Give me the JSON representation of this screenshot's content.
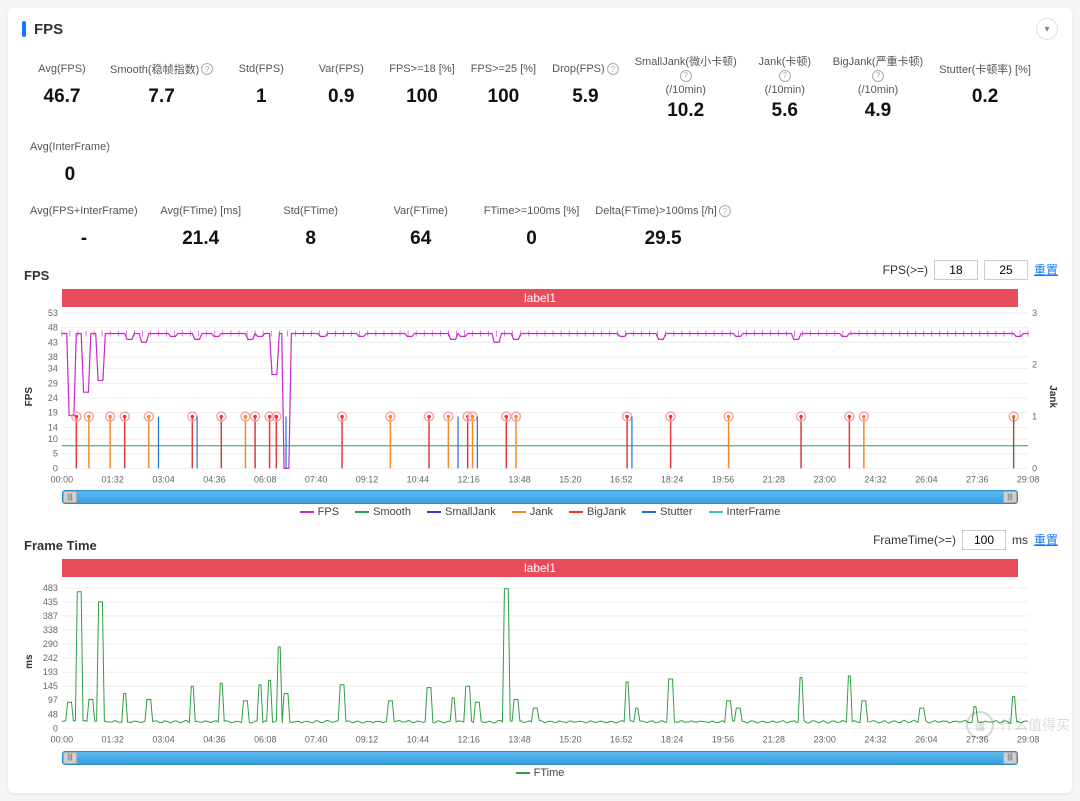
{
  "header": {
    "title": "FPS"
  },
  "stats_row1": [
    {
      "label": "Avg(FPS)",
      "value": "46.7",
      "help": false
    },
    {
      "label": "Smooth(稳帧指数)",
      "value": "7.7",
      "help": true
    },
    {
      "label": "Std(FPS)",
      "value": "1",
      "help": false
    },
    {
      "label": "Var(FPS)",
      "value": "0.9",
      "help": false
    },
    {
      "label": "FPS>=18 [%]",
      "value": "100",
      "help": false
    },
    {
      "label": "FPS>=25 [%]",
      "value": "100",
      "help": false
    },
    {
      "label": "Drop(FPS)",
      "value": "5.9",
      "help": true
    },
    {
      "label_l1": "SmallJank(微小卡顿)",
      "label_l2": "(/10min)",
      "value": "10.2",
      "help": true,
      "two": true
    },
    {
      "label_l1": "Jank(卡顿)",
      "label_l2": "(/10min)",
      "value": "5.6",
      "help": true,
      "two": true
    },
    {
      "label_l1": "BigJank(严重卡顿)",
      "label_l2": "(/10min)",
      "value": "4.9",
      "help": true,
      "two": true
    },
    {
      "label": "Stutter(卡顿率) [%]",
      "value": "0.2",
      "help": false
    },
    {
      "label": "Avg(InterFrame)",
      "value": "0",
      "help": false
    }
  ],
  "stats_row2": [
    {
      "label": "Avg(FPS+InterFrame)",
      "value": "-",
      "help": false
    },
    {
      "label": "Avg(FTime) [ms]",
      "value": "21.4",
      "help": false
    },
    {
      "label": "Std(FTime)",
      "value": "8",
      "help": false
    },
    {
      "label": "Var(FTime)",
      "value": "64",
      "help": false
    },
    {
      "label": "FTime>=100ms [%]",
      "value": "0",
      "help": false
    },
    {
      "label": "Delta(FTime)>100ms [/h]",
      "value": "29.5",
      "help": true
    }
  ],
  "fps_chart": {
    "title": "FPS",
    "label_bar": "label1",
    "control_label": "FPS(>=)",
    "input1": "18",
    "input2": "25",
    "reset": "重置",
    "y_left": {
      "label": "FPS",
      "ticks": [
        0,
        5,
        10,
        14,
        19,
        24,
        29,
        34,
        38,
        43,
        48,
        53
      ],
      "min": 0,
      "max": 53
    },
    "y_right": {
      "label": "Jank",
      "ticks": [
        0,
        1,
        2,
        3
      ],
      "min": 0,
      "max": 3
    },
    "x_ticks": [
      "00:00",
      "01:32",
      "03:04",
      "04:36",
      "06:08",
      "07:40",
      "09:12",
      "10:44",
      "12:16",
      "13:48",
      "15:20",
      "16:52",
      "18:24",
      "19:56",
      "21:28",
      "23:00",
      "24:32",
      "26:04",
      "27:36",
      "29:08"
    ],
    "colors": {
      "fps": "#c728c7",
      "smooth": "#2e9e44",
      "smalljank": "#3b3bd6",
      "jank": "#f08b2a",
      "bigjank": "#e03a3a",
      "stutter": "#1f6fd6",
      "interframe": "#30c4c4",
      "grid": "#eeeeee",
      "axis": "#666666",
      "marker_ring": "#f5a6a6"
    },
    "fps_baseline": 46,
    "fps_dips": [
      {
        "t": 0.01,
        "v": 18
      },
      {
        "t": 0.025,
        "v": 26
      },
      {
        "t": 0.04,
        "v": 30
      },
      {
        "t": 0.07,
        "v": 44
      },
      {
        "t": 0.085,
        "v": 43
      },
      {
        "t": 0.115,
        "v": 45
      },
      {
        "t": 0.14,
        "v": 44
      },
      {
        "t": 0.16,
        "v": 45
      },
      {
        "t": 0.195,
        "v": 44
      },
      {
        "t": 0.205,
        "v": 45
      },
      {
        "t": 0.22,
        "v": 32
      },
      {
        "t": 0.232,
        "v": 0
      },
      {
        "t": 0.27,
        "v": 45
      },
      {
        "t": 0.31,
        "v": 45
      },
      {
        "t": 0.36,
        "v": 45
      },
      {
        "t": 0.405,
        "v": 44
      },
      {
        "t": 0.415,
        "v": 45
      },
      {
        "t": 0.45,
        "v": 43
      },
      {
        "t": 0.47,
        "v": 44
      },
      {
        "t": 0.52,
        "v": 47
      },
      {
        "t": 0.58,
        "v": 45
      },
      {
        "t": 0.62,
        "v": 44
      },
      {
        "t": 0.67,
        "v": 47
      },
      {
        "t": 0.7,
        "v": 45
      },
      {
        "t": 0.76,
        "v": 44
      },
      {
        "t": 0.81,
        "v": 45
      },
      {
        "t": 0.86,
        "v": 47
      },
      {
        "t": 0.93,
        "v": 47
      },
      {
        "t": 0.99,
        "v": 45
      }
    ],
    "smooth_level": 7.7,
    "jank_events": [
      {
        "t": 0.015,
        "big": true
      },
      {
        "t": 0.028,
        "big": false
      },
      {
        "t": 0.05,
        "big": false
      },
      {
        "t": 0.065,
        "big": true
      },
      {
        "t": 0.09,
        "big": false
      },
      {
        "t": 0.135,
        "big": true
      },
      {
        "t": 0.165,
        "big": true
      },
      {
        "t": 0.19,
        "big": false
      },
      {
        "t": 0.2,
        "big": true
      },
      {
        "t": 0.215,
        "big": true
      },
      {
        "t": 0.222,
        "big": true
      },
      {
        "t": 0.29,
        "big": true
      },
      {
        "t": 0.34,
        "big": false
      },
      {
        "t": 0.38,
        "big": true
      },
      {
        "t": 0.4,
        "big": false
      },
      {
        "t": 0.42,
        "big": true
      },
      {
        "t": 0.425,
        "big": false
      },
      {
        "t": 0.46,
        "big": true
      },
      {
        "t": 0.47,
        "big": false
      },
      {
        "t": 0.585,
        "big": true
      },
      {
        "t": 0.63,
        "big": true
      },
      {
        "t": 0.69,
        "big": false
      },
      {
        "t": 0.765,
        "big": true
      },
      {
        "t": 0.815,
        "big": true
      },
      {
        "t": 0.83,
        "big": false
      },
      {
        "t": 0.985,
        "big": false
      }
    ],
    "stutter_spikes": [
      {
        "t": 0.1
      },
      {
        "t": 0.14
      },
      {
        "t": 0.232
      },
      {
        "t": 0.41
      },
      {
        "t": 0.43
      },
      {
        "t": 0.59
      },
      {
        "t": 0.985
      }
    ],
    "legend": [
      {
        "name": "FPS",
        "color": "#c728c7"
      },
      {
        "name": "Smooth",
        "color": "#2e9e44"
      },
      {
        "name": "SmallJank",
        "color": "#3b3bd6"
      },
      {
        "name": "Jank",
        "color": "#f08b2a"
      },
      {
        "name": "BigJank",
        "color": "#e03a3a"
      },
      {
        "name": "Stutter",
        "color": "#1f6fd6"
      },
      {
        "name": "InterFrame",
        "color": "#30c4c4"
      }
    ]
  },
  "ft_chart": {
    "title": "Frame Time",
    "label_bar": "label1",
    "control_label": "FrameTime(>=)",
    "input1": "100",
    "unit": "ms",
    "reset": "重置",
    "y": {
      "label": "ms",
      "ticks": [
        0,
        48,
        97,
        145,
        193,
        242,
        290,
        338,
        387,
        435,
        483
      ],
      "min": 0,
      "max": 500
    },
    "x_ticks": [
      "00:00",
      "01:32",
      "03:04",
      "04:36",
      "06:08",
      "07:40",
      "09:12",
      "10:44",
      "12:16",
      "13:48",
      "15:20",
      "16:52",
      "18:24",
      "19:56",
      "21:28",
      "23:00",
      "24:32",
      "26:04",
      "27:36",
      "29:08"
    ],
    "color": "#2e9e44",
    "baseline": 21,
    "spikes": [
      {
        "t": 0.008,
        "v": 90
      },
      {
        "t": 0.018,
        "v": 470
      },
      {
        "t": 0.03,
        "v": 100
      },
      {
        "t": 0.04,
        "v": 435
      },
      {
        "t": 0.065,
        "v": 120
      },
      {
        "t": 0.09,
        "v": 100
      },
      {
        "t": 0.135,
        "v": 145
      },
      {
        "t": 0.165,
        "v": 155
      },
      {
        "t": 0.19,
        "v": 95
      },
      {
        "t": 0.205,
        "v": 150
      },
      {
        "t": 0.215,
        "v": 165
      },
      {
        "t": 0.225,
        "v": 280
      },
      {
        "t": 0.232,
        "v": 120
      },
      {
        "t": 0.29,
        "v": 150
      },
      {
        "t": 0.34,
        "v": 95
      },
      {
        "t": 0.38,
        "v": 140
      },
      {
        "t": 0.405,
        "v": 105
      },
      {
        "t": 0.42,
        "v": 145
      },
      {
        "t": 0.43,
        "v": 90
      },
      {
        "t": 0.46,
        "v": 480
      },
      {
        "t": 0.47,
        "v": 100
      },
      {
        "t": 0.49,
        "v": 70
      },
      {
        "t": 0.585,
        "v": 160
      },
      {
        "t": 0.595,
        "v": 70
      },
      {
        "t": 0.63,
        "v": 170
      },
      {
        "t": 0.69,
        "v": 95
      },
      {
        "t": 0.7,
        "v": 70
      },
      {
        "t": 0.765,
        "v": 175
      },
      {
        "t": 0.815,
        "v": 180
      },
      {
        "t": 0.83,
        "v": 95
      },
      {
        "t": 0.89,
        "v": 70
      },
      {
        "t": 0.945,
        "v": 75
      },
      {
        "t": 0.985,
        "v": 110
      }
    ],
    "legend": [
      {
        "name": "FTime",
        "color": "#2e9e44"
      }
    ]
  },
  "watermark": {
    "text": "什么值得买"
  }
}
